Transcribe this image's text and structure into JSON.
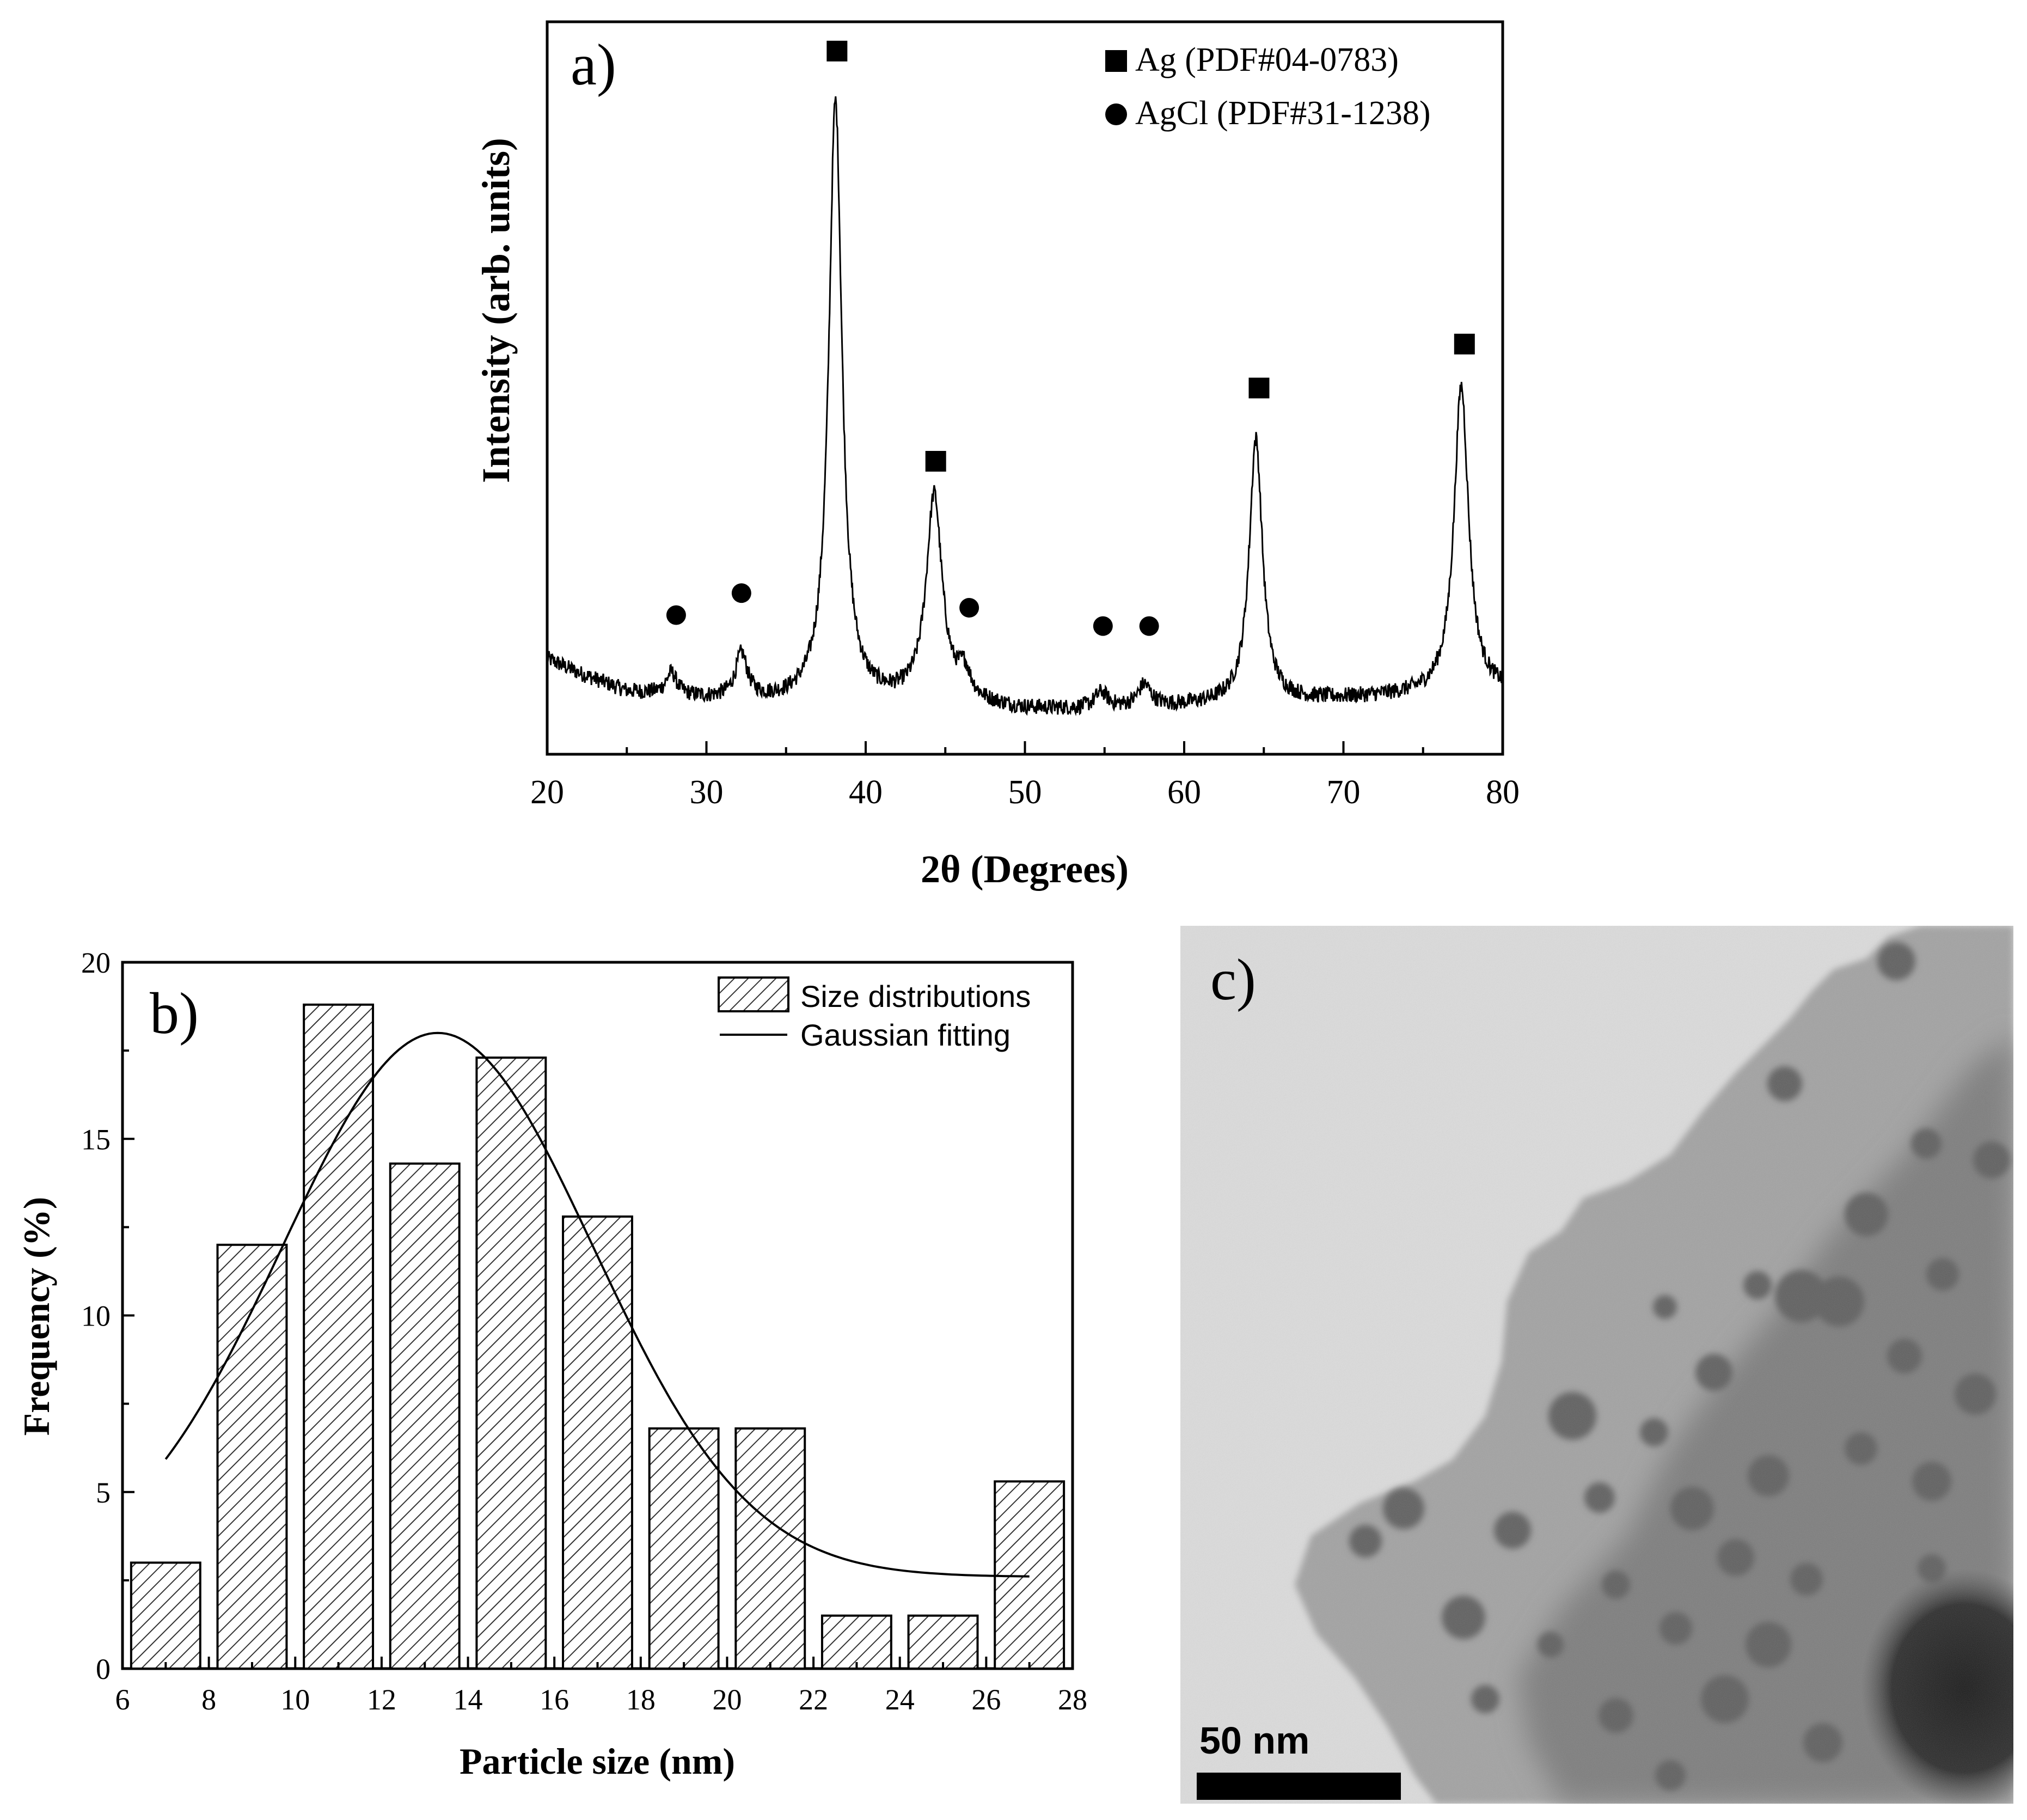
{
  "chart_data": [
    {
      "panel_label": "a)",
      "type": "line",
      "xlabel": "2θ (Degrees)",
      "ylabel": "Intensity (arb. units)",
      "xlim": [
        20,
        80
      ],
      "xticks": [
        20,
        30,
        40,
        50,
        60,
        70,
        80
      ],
      "y_ticks_shown": false,
      "legend": {
        "placement": "top-right",
        "entries": [
          {
            "marker": "square",
            "label": "Ag (PDF#04-0783)"
          },
          {
            "marker": "circle",
            "label": "AgCl (PDF#31-1238)"
          }
        ]
      },
      "series": [
        {
          "baseline": [
            [
              20,
              0.13
            ],
            [
              22,
              0.11
            ],
            [
              25,
              0.085
            ],
            [
              30,
              0.075
            ],
            [
              35,
              0.07
            ],
            [
              40,
              0.07
            ],
            [
              45,
              0.07
            ],
            [
              50,
              0.06
            ],
            [
              55,
              0.06
            ],
            [
              60,
              0.065
            ],
            [
              65,
              0.07
            ],
            [
              70,
              0.075
            ],
            [
              75,
              0.08
            ],
            [
              80,
              0.085
            ]
          ],
          "peaks": [
            {
              "x": 27.8,
              "height": 0.03,
              "width": 0.4
            },
            {
              "x": 32.2,
              "height": 0.06,
              "width": 0.45
            },
            {
              "x": 38.1,
              "height": 0.82,
              "width": 0.5
            },
            {
              "x": 44.3,
              "height": 0.28,
              "width": 0.6
            },
            {
              "x": 46.2,
              "height": 0.035,
              "width": 0.45
            },
            {
              "x": 54.8,
              "height": 0.022,
              "width": 0.5
            },
            {
              "x": 57.5,
              "height": 0.03,
              "width": 0.5
            },
            {
              "x": 64.5,
              "height": 0.36,
              "width": 0.5
            },
            {
              "x": 77.4,
              "height": 0.42,
              "width": 0.55
            }
          ]
        }
      ],
      "peak_markers": [
        {
          "x": 28.1,
          "y": 0.19,
          "phase": "AgCl",
          "marker": "circle"
        },
        {
          "x": 32.2,
          "y": 0.22,
          "phase": "AgCl",
          "marker": "circle"
        },
        {
          "x": 38.2,
          "y": 0.96,
          "phase": "Ag",
          "marker": "square"
        },
        {
          "x": 44.4,
          "y": 0.4,
          "phase": "Ag",
          "marker": "square"
        },
        {
          "x": 46.5,
          "y": 0.2,
          "phase": "AgCl",
          "marker": "circle"
        },
        {
          "x": 54.9,
          "y": 0.175,
          "phase": "AgCl",
          "marker": "circle"
        },
        {
          "x": 57.8,
          "y": 0.175,
          "phase": "AgCl",
          "marker": "circle"
        },
        {
          "x": 64.7,
          "y": 0.5,
          "phase": "Ag",
          "marker": "square"
        },
        {
          "x": 77.6,
          "y": 0.56,
          "phase": "Ag",
          "marker": "square"
        }
      ]
    },
    {
      "panel_label": "b)",
      "type": "bar",
      "xlabel": "Particle size (nm)",
      "ylabel": "Frequency (%)",
      "xlim": [
        6,
        28
      ],
      "ylim": [
        0,
        20
      ],
      "xticks": [
        6,
        8,
        10,
        12,
        14,
        16,
        18,
        20,
        22,
        24,
        26,
        28
      ],
      "yticks": [
        0,
        5,
        10,
        15,
        20
      ],
      "legend": {
        "placement": "top-right",
        "entries": [
          {
            "marker": "hatched-box",
            "label": "Size distributions"
          },
          {
            "marker": "line",
            "label": "Gaussian fitting"
          }
        ]
      },
      "bars": [
        {
          "center": 7,
          "width": 1.6,
          "value": 3.0
        },
        {
          "center": 9,
          "width": 1.6,
          "value": 12.0
        },
        {
          "center": 11,
          "width": 1.6,
          "value": 18.8
        },
        {
          "center": 13,
          "width": 1.6,
          "value": 14.3
        },
        {
          "center": 15,
          "width": 1.6,
          "value": 17.3
        },
        {
          "center": 17,
          "width": 1.6,
          "value": 12.8
        },
        {
          "center": 19,
          "width": 1.6,
          "value": 6.8
        },
        {
          "center": 21,
          "width": 1.6,
          "value": 6.8
        },
        {
          "center": 23,
          "width": 1.6,
          "value": 1.5
        },
        {
          "center": 25,
          "width": 1.6,
          "value": 1.5
        },
        {
          "center": 27,
          "width": 1.6,
          "value": 5.3
        }
      ],
      "gaussian_fit": {
        "y0": 2.6,
        "amplitude": 15.4,
        "xc": 13.3,
        "sigma": 3.6,
        "x_range": [
          7,
          27
        ]
      }
    }
  ],
  "tem_image": {
    "panel_label": "c)",
    "scale_bar_label": "50 nm"
  }
}
